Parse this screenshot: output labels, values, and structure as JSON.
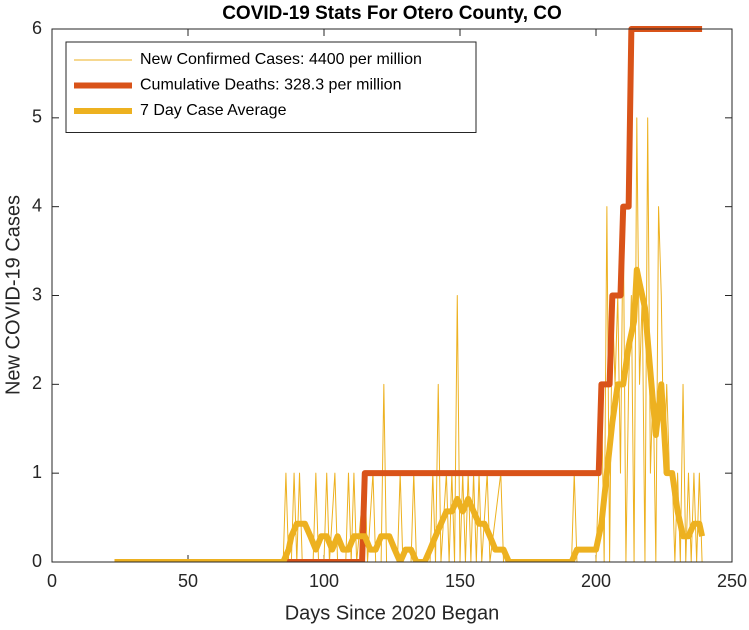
{
  "chart_data": {
    "type": "line",
    "title": "COVID-19 Stats For Otero County, CO",
    "xlabel": "Days Since 2020 Began",
    "ylabel": "New COVID-19 Cases",
    "xlim": [
      0,
      250
    ],
    "ylim": [
      0,
      6
    ],
    "xticks": [
      0,
      50,
      100,
      150,
      200,
      250
    ],
    "yticks": [
      0,
      1,
      2,
      3,
      4,
      5,
      6
    ],
    "grid": false,
    "legend": "upper-left",
    "series": [
      {
        "name": "New Confirmed Cases: 4400 per million",
        "color": "#EDB120",
        "width": 1,
        "x": [
          23,
          85,
          86,
          87,
          88,
          89,
          90,
          91,
          92,
          96,
          97,
          98,
          100,
          101,
          102,
          104,
          105,
          108,
          109,
          110,
          111,
          112,
          115,
          116,
          118,
          119,
          121,
          122,
          123,
          127,
          128,
          129,
          132,
          133,
          134,
          139,
          140,
          141,
          142,
          143,
          145,
          146,
          147,
          148,
          149,
          150,
          151,
          152,
          153,
          154,
          155,
          156,
          157,
          158,
          160,
          161,
          165,
          166,
          191,
          192,
          193,
          200,
          201,
          202,
          203,
          204,
          205,
          206,
          207,
          208,
          209,
          210,
          211,
          212,
          213,
          214,
          215,
          216,
          217,
          218,
          219,
          220,
          221,
          222,
          223,
          224,
          225,
          226,
          227,
          228,
          229,
          230,
          231,
          232,
          233,
          234,
          235,
          236,
          237,
          238,
          239
        ],
        "values": [
          0,
          0,
          1,
          0,
          0,
          1,
          0,
          1,
          0,
          0,
          1,
          0,
          0,
          1,
          0,
          1,
          0,
          0,
          1,
          0,
          1,
          0,
          1,
          0,
          1,
          0,
          0,
          2,
          0,
          0,
          1,
          0,
          0,
          1,
          0,
          0,
          1,
          0,
          2,
          0,
          1,
          0,
          1,
          0,
          3,
          0,
          1,
          0,
          1,
          0,
          1,
          0,
          1,
          0,
          1,
          0,
          1,
          0,
          0,
          1,
          0,
          0,
          1,
          2,
          0,
          4,
          0,
          3,
          2,
          3,
          1,
          4,
          0,
          2,
          3,
          0,
          5,
          2,
          3,
          0,
          5,
          1,
          2,
          0,
          4,
          3,
          1,
          2,
          1,
          1,
          0,
          1,
          0,
          2,
          0,
          1,
          0,
          1,
          0,
          1,
          0
        ]
      },
      {
        "name": "Cumulative Deaths: 328.3 per million",
        "color": "#D95319",
        "width": 6,
        "x": [
          23,
          114,
          115,
          201,
          202,
          205,
          206,
          209,
          210,
          212,
          213,
          239
        ],
        "values": [
          0,
          0,
          1,
          1,
          2,
          2,
          3,
          3,
          4,
          4,
          6,
          6
        ]
      },
      {
        "name": "7 Day Case Average",
        "color": "#EDB120",
        "width": 6,
        "x": [
          23,
          85,
          87,
          88,
          90,
          93,
          95,
          97,
          99,
          101,
          103,
          105,
          107,
          109,
          111,
          113,
          115,
          117,
          119,
          121,
          124,
          126,
          128,
          130,
          132,
          134,
          137,
          139,
          141,
          143,
          145,
          147,
          149,
          151,
          153,
          155,
          157,
          159,
          161,
          163,
          166,
          168,
          191,
          193,
          200,
          202,
          204,
          206,
          208,
          210,
          212,
          214,
          215,
          216,
          218,
          220,
          222,
          224,
          226,
          228,
          230,
          232,
          234,
          236,
          238,
          239
        ],
        "values": [
          0,
          0,
          0.14,
          0.29,
          0.43,
          0.43,
          0.29,
          0.14,
          0.29,
          0.29,
          0.14,
          0.29,
          0.14,
          0.14,
          0.29,
          0.29,
          0.29,
          0.14,
          0.14,
          0.29,
          0.29,
          0.14,
          0,
          0.14,
          0.14,
          0,
          0,
          0.14,
          0.29,
          0.43,
          0.57,
          0.57,
          0.71,
          0.57,
          0.71,
          0.57,
          0.43,
          0.43,
          0.29,
          0.14,
          0.14,
          0,
          0,
          0.14,
          0.14,
          0.43,
          1,
          1.57,
          2,
          2,
          2.43,
          2.71,
          3.29,
          3.14,
          2.86,
          2.14,
          1.43,
          2,
          1,
          1,
          0.57,
          0.29,
          0.29,
          0.43,
          0.43,
          0.29
        ]
      }
    ]
  }
}
